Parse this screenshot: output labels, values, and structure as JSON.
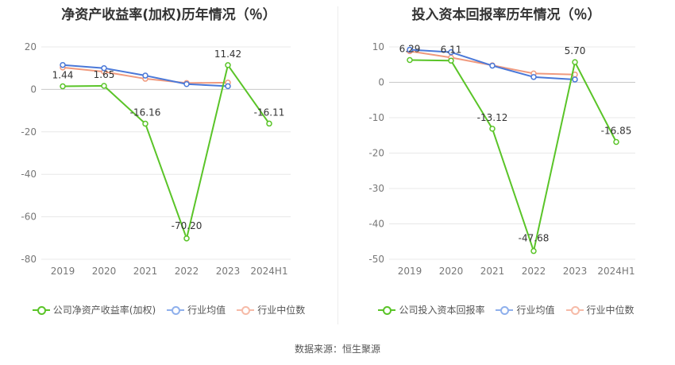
{
  "colors": {
    "company": "#5ac428",
    "avg": "#4a78d8",
    "median": "#f09a7e"
  },
  "source": "数据来源：恒生聚源",
  "chart_data": [
    {
      "type": "line",
      "title": "净资产收益率(加权)历年情况（％）",
      "categories": [
        "2019",
        "2020",
        "2021",
        "2022",
        "2023",
        "2024H1"
      ],
      "ylim": [
        -80,
        20
      ],
      "yticks": [
        20,
        0,
        -20,
        -40,
        -60,
        -80
      ],
      "grid": true,
      "legend_position": "bottom",
      "series": [
        {
          "name": "公司净资产收益率(加权)",
          "key": "company",
          "values": [
            1.44,
            1.65,
            -16.16,
            -70.2,
            11.42,
            -16.11
          ],
          "labels": [
            "1.44",
            "1.65",
            "-16.16",
            "-70.20",
            "11.42",
            "-16.11"
          ]
        },
        {
          "name": "行业均值",
          "key": "avg",
          "values": [
            11.5,
            10.0,
            6.5,
            2.5,
            1.5,
            null
          ]
        },
        {
          "name": "行业中位数",
          "key": "median",
          "values": [
            10.3,
            8.3,
            5.0,
            3.0,
            3.2,
            null
          ]
        }
      ]
    },
    {
      "type": "line",
      "title": "投入资本回报率历年情况（％）",
      "categories": [
        "2019",
        "2020",
        "2021",
        "2022",
        "2023",
        "2024H1"
      ],
      "ylim": [
        -50,
        10
      ],
      "yticks": [
        10,
        0,
        -10,
        -20,
        -30,
        -40,
        -50
      ],
      "grid": true,
      "legend_position": "bottom",
      "series": [
        {
          "name": "公司投入资本回报率",
          "key": "company",
          "values": [
            6.29,
            6.11,
            -13.12,
            -47.68,
            5.7,
            -16.85
          ],
          "labels": [
            "6.29",
            "6.11",
            "-13.12",
            "-47.68",
            "5.70",
            "-16.85"
          ]
        },
        {
          "name": "行业均值",
          "key": "avg",
          "values": [
            9.2,
            8.5,
            4.7,
            1.5,
            0.8,
            null
          ]
        },
        {
          "name": "行业中位数",
          "key": "median",
          "values": [
            8.8,
            7.0,
            4.8,
            2.5,
            2.2,
            null
          ]
        }
      ]
    }
  ]
}
